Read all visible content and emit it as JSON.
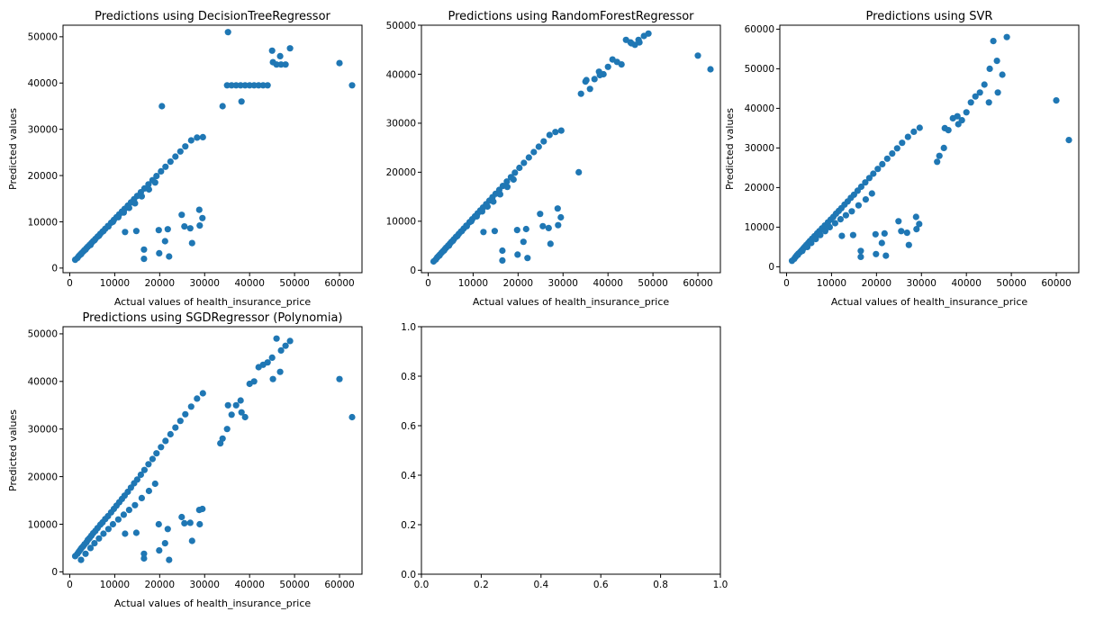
{
  "figure": {
    "background": "#ffffff",
    "marker_color": "#1f77b4"
  },
  "chart_data": [
    {
      "type": "scatter",
      "title": "Predictions using DecisionTreeRegressor",
      "xlabel": "Actual values of health_insurance_price",
      "ylabel": "Predicted values",
      "xlim": [
        -1500,
        65000
      ],
      "ylim": [
        -1000,
        52500
      ],
      "xticks": [
        0,
        10000,
        20000,
        30000,
        40000,
        50000,
        60000
      ],
      "yticks": [
        0,
        10000,
        20000,
        30000,
        40000,
        50000
      ],
      "x": [
        1200,
        1700,
        2000,
        2300,
        2600,
        3000,
        3300,
        3700,
        4000,
        4400,
        4800,
        5200,
        5700,
        6200,
        6800,
        7300,
        7900,
        8500,
        9200,
        9800,
        10400,
        11000,
        11600,
        12200,
        12900,
        13600,
        14300,
        15000,
        15800,
        16600,
        17500,
        18400,
        19300,
        20300,
        21300,
        22400,
        23500,
        24600,
        25700,
        27000,
        28300,
        29600,
        2500,
        3500,
        4600,
        5500,
        6500,
        7500,
        8600,
        9600,
        10800,
        12000,
        13200,
        14500,
        16000,
        17600,
        19000,
        12300,
        14800,
        16500,
        19800,
        21800,
        24900,
        26800,
        28800,
        29500,
        16500,
        19900,
        21200,
        22100,
        25500,
        27200,
        28900,
        20500,
        34000,
        35000,
        36000,
        37000,
        38000,
        39000,
        40000,
        41000,
        42000,
        43000,
        44000,
        45000,
        46000,
        47000,
        48000,
        49000,
        45200,
        46800,
        60000,
        62800,
        35200,
        38200
      ],
      "y": [
        1800,
        2200,
        2600,
        2900,
        3200,
        3600,
        3900,
        4300,
        4600,
        5000,
        5400,
        5800,
        6300,
        6800,
        7400,
        7900,
        8500,
        9100,
        9800,
        10400,
        11000,
        11600,
        12200,
        12800,
        13500,
        14200,
        14900,
        15600,
        16400,
        17200,
        18100,
        19000,
        19900,
        20900,
        21900,
        23000,
        24100,
        25200,
        26300,
        27600,
        28200,
        28300,
        3000,
        4000,
        5000,
        6000,
        7000,
        8000,
        9000,
        10000,
        11000,
        12000,
        13000,
        14000,
        15500,
        17000,
        18500,
        7800,
        8000,
        4000,
        8200,
        8400,
        11500,
        8600,
        12600,
        10800,
        2000,
        3200,
        5800,
        2500,
        9000,
        5400,
        9200,
        35000,
        35000,
        39500,
        39500,
        39500,
        39500,
        39500,
        39500,
        39500,
        39500,
        39500,
        39500,
        47000,
        44000,
        44000,
        44000,
        47500,
        44500,
        45800,
        44300,
        39500,
        51000,
        36000
      ]
    },
    {
      "type": "scatter",
      "title": "Predictions using RandomForestRegressor",
      "xlabel": "Actual values of health_insurance_price",
      "ylabel": "",
      "xlim": [
        -1500,
        65000
      ],
      "ylim": [
        -500,
        50000
      ],
      "xticks": [
        0,
        10000,
        20000,
        30000,
        40000,
        50000,
        60000
      ],
      "yticks": [
        0,
        10000,
        20000,
        30000,
        40000,
        50000
      ],
      "x": [
        1200,
        1700,
        2000,
        2300,
        2600,
        3000,
        3300,
        3700,
        4000,
        4400,
        4800,
        5200,
        5700,
        6200,
        6800,
        7300,
        7900,
        8500,
        9200,
        9800,
        10400,
        11000,
        11600,
        12200,
        12900,
        13600,
        14300,
        15000,
        15800,
        16600,
        17500,
        18400,
        19300,
        20300,
        21300,
        22400,
        23500,
        24600,
        25700,
        27000,
        28300,
        29600,
        2500,
        3500,
        4600,
        5500,
        6500,
        7500,
        8600,
        9600,
        10800,
        12000,
        13200,
        14500,
        16000,
        17600,
        19000,
        12300,
        14800,
        16500,
        19800,
        21800,
        24900,
        26800,
        28800,
        29500,
        16500,
        19900,
        21200,
        22100,
        25500,
        27200,
        28900,
        33500,
        34000,
        35000,
        36000,
        37000,
        38000,
        39000,
        40000,
        41000,
        42000,
        43000,
        44000,
        45000,
        46000,
        47000,
        48000,
        49000,
        45200,
        46800,
        60000,
        62800,
        35200,
        38200
      ],
      "y": [
        1800,
        2200,
        2600,
        2900,
        3200,
        3600,
        3900,
        4300,
        4600,
        5000,
        5400,
        5800,
        6300,
        6800,
        7400,
        7900,
        8500,
        9100,
        9800,
        10400,
        11000,
        11600,
        12200,
        12800,
        13500,
        14200,
        14900,
        15600,
        16400,
        17200,
        18100,
        19000,
        19900,
        20900,
        21900,
        23000,
        24100,
        25200,
        26300,
        27600,
        28200,
        28500,
        3000,
        4000,
        5000,
        6000,
        7000,
        8000,
        9000,
        10000,
        11000,
        12000,
        13000,
        14000,
        15500,
        17000,
        18500,
        7800,
        8000,
        4000,
        8200,
        8400,
        11500,
        8600,
        12600,
        10800,
        2000,
        3200,
        5800,
        2500,
        9000,
        5400,
        9200,
        20000,
        36000,
        38500,
        37000,
        39000,
        40500,
        40000,
        41500,
        43000,
        42500,
        42000,
        47000,
        46500,
        46000,
        46500,
        47800,
        48300,
        46300,
        47000,
        43800,
        41000,
        38800,
        39800
      ]
    },
    {
      "type": "scatter",
      "title": "Predictions using SVR",
      "xlabel": "Actual values of health_insurance_price",
      "ylabel": "Predicted values",
      "xlim": [
        -1500,
        65000
      ],
      "ylim": [
        -1500,
        61000
      ],
      "xticks": [
        0,
        10000,
        20000,
        30000,
        40000,
        50000,
        60000
      ],
      "yticks": [
        0,
        10000,
        20000,
        30000,
        40000,
        50000,
        60000
      ],
      "x": [
        1200,
        1700,
        2000,
        2300,
        2600,
        3000,
        3300,
        3700,
        4000,
        4400,
        4800,
        5200,
        5700,
        6200,
        6800,
        7300,
        7900,
        8500,
        9200,
        9800,
        10400,
        11000,
        11600,
        12200,
        12900,
        13600,
        14300,
        15000,
        15800,
        16600,
        17500,
        18400,
        19300,
        20300,
        21300,
        22400,
        23500,
        24600,
        25700,
        27000,
        28300,
        29600,
        2500,
        3500,
        4600,
        5500,
        6500,
        7500,
        8600,
        9600,
        10800,
        12000,
        13200,
        14500,
        16000,
        17600,
        19000,
        12300,
        14800,
        16500,
        19800,
        21800,
        24900,
        26800,
        28800,
        29500,
        16500,
        19900,
        21200,
        22100,
        25500,
        27200,
        28900,
        33500,
        34000,
        35000,
        36000,
        37000,
        38000,
        39000,
        40000,
        41000,
        42000,
        43000,
        44000,
        45000,
        46000,
        47000,
        48000,
        49000,
        45200,
        46800,
        60000,
        62800,
        35200,
        38200
      ],
      "y": [
        1500,
        2000,
        2500,
        2900,
        3300,
        3700,
        4100,
        4600,
        5000,
        5500,
        6000,
        6500,
        7100,
        7700,
        8400,
        9000,
        9700,
        10400,
        11200,
        11900,
        12600,
        13400,
        14100,
        14800,
        15700,
        16500,
        17400,
        18200,
        19200,
        20200,
        21300,
        22400,
        23500,
        24700,
        25900,
        27300,
        28600,
        29900,
        31300,
        32800,
        34100,
        35100,
        3000,
        4000,
        5000,
        6000,
        7000,
        8000,
        9000,
        10000,
        11000,
        12000,
        13000,
        14000,
        15500,
        17000,
        18500,
        7800,
        8000,
        4000,
        8200,
        8400,
        11500,
        8600,
        12600,
        10800,
        2500,
        3200,
        6000,
        2800,
        9000,
        5500,
        9500,
        26500,
        28000,
        30000,
        34500,
        37500,
        38000,
        37000,
        39000,
        41500,
        43000,
        44000,
        46000,
        41500,
        57000,
        44000,
        48500,
        58000,
        50000,
        52000,
        42000,
        32000,
        35000,
        36000
      ]
    },
    {
      "type": "scatter",
      "title": "Predictions using SGDRegressor (Polynomia)",
      "xlabel": "Actual values of health_insurance_price",
      "ylabel": "Predicted values",
      "xlim": [
        -1500,
        65000
      ],
      "ylim": [
        -500,
        51500
      ],
      "xticks": [
        0,
        10000,
        20000,
        30000,
        40000,
        50000,
        60000
      ],
      "yticks": [
        0,
        10000,
        20000,
        30000,
        40000,
        50000
      ],
      "x": [
        1200,
        1700,
        2000,
        2300,
        2600,
        3000,
        3300,
        3700,
        4000,
        4400,
        4800,
        5200,
        5700,
        6200,
        6800,
        7300,
        7900,
        8500,
        9200,
        9800,
        10400,
        11000,
        11600,
        12200,
        12900,
        13600,
        14300,
        15000,
        15800,
        16600,
        17500,
        18400,
        19300,
        20300,
        21300,
        22400,
        23500,
        24600,
        25700,
        27000,
        28300,
        29600,
        2500,
        3500,
        4600,
        5500,
        6500,
        7500,
        8600,
        9600,
        10800,
        12000,
        13200,
        14500,
        16000,
        17600,
        19000,
        12300,
        14800,
        16500,
        19800,
        21800,
        24900,
        26800,
        28800,
        29500,
        16500,
        19900,
        21200,
        22100,
        25500,
        27200,
        28900,
        33500,
        34000,
        35000,
        36000,
        37000,
        38000,
        39000,
        40000,
        41000,
        42000,
        43000,
        44000,
        45000,
        46000,
        47000,
        48000,
        49000,
        45200,
        46800,
        60000,
        62800,
        35200,
        38200
      ],
      "y": [
        3300,
        3800,
        4200,
        4600,
        5000,
        5400,
        5800,
        6200,
        6700,
        7100,
        7600,
        8100,
        8600,
        9200,
        9900,
        10400,
        11100,
        11700,
        12500,
        13200,
        13900,
        14600,
        15300,
        16000,
        16800,
        17700,
        18600,
        19400,
        20400,
        21400,
        22600,
        23700,
        24900,
        26200,
        27500,
        28900,
        30300,
        31700,
        33100,
        34700,
        36400,
        37500,
        2500,
        3800,
        5000,
        6000,
        7000,
        8000,
        9000,
        10000,
        11000,
        12000,
        13000,
        14000,
        15500,
        17000,
        18500,
        8000,
        8200,
        3800,
        10000,
        9000,
        11500,
        10300,
        13000,
        13200,
        2800,
        4500,
        6000,
        2500,
        10200,
        6500,
        10000,
        27000,
        28000,
        30000,
        33000,
        35000,
        36000,
        32500,
        39500,
        40000,
        43000,
        43500,
        44000,
        45000,
        49000,
        46500,
        47500,
        48500,
        40500,
        42000,
        40500,
        32500,
        35000,
        33500
      ]
    },
    {
      "type": "scatter",
      "title": "",
      "xlabel": "",
      "ylabel": "",
      "xlim": [
        0,
        1
      ],
      "ylim": [
        0,
        1
      ],
      "xticks": [
        0.0,
        0.2,
        0.4,
        0.6,
        0.8,
        1.0
      ],
      "yticks": [
        0.0,
        0.2,
        0.4,
        0.6,
        0.8,
        1.0
      ],
      "tick_format": "fixed1",
      "x": [],
      "y": []
    }
  ]
}
